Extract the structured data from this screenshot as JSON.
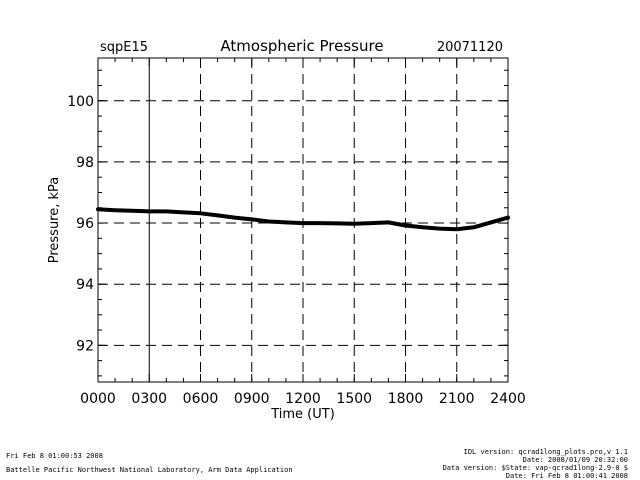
{
  "chart_data": {
    "type": "line",
    "site": "sqpE15",
    "title": "Atmospheric Pressure",
    "date": "20071120",
    "xlabel": "Time (UT)",
    "ylabel": "Pressure, kPa",
    "xlim": [
      0,
      24
    ],
    "ylim": [
      90.8,
      101.4
    ],
    "x_ticks": [
      0,
      3,
      6,
      9,
      12,
      15,
      18,
      21,
      24
    ],
    "x_tick_labels": [
      "0000",
      "0300",
      "0600",
      "0900",
      "1200",
      "1500",
      "1800",
      "2100",
      "2400"
    ],
    "y_ticks": [
      92,
      94,
      96,
      98,
      100
    ],
    "y_tick_labels": [
      "92",
      "94",
      "96",
      "98",
      "100"
    ],
    "grid": true,
    "series": [
      {
        "x": [
          0,
          1,
          2,
          3,
          4,
          5,
          6,
          7,
          8,
          9,
          10,
          11,
          12,
          13,
          14,
          15,
          16,
          17,
          18,
          19,
          20,
          21,
          22,
          23,
          24
        ],
        "y": [
          96.45,
          96.42,
          96.4,
          96.38,
          96.38,
          96.35,
          96.32,
          96.25,
          96.18,
          96.12,
          96.05,
          96.02,
          96.0,
          96.0,
          95.99,
          95.98,
          96.0,
          96.02,
          95.92,
          95.86,
          95.82,
          95.8,
          95.86,
          96.02,
          96.18
        ],
        "color": "#000000"
      }
    ]
  },
  "footer": {
    "left_line1": "Fri Feb  8 01:00:53 2008",
    "left_line2": "Battelle Pacific Northwest National Laboratory, Arm Data Application",
    "right_line1": "IDL version: qcrad1long_plots.pro,v 1.1",
    "right_line2": "Date: 2008/01/09 20:32:00",
    "right_line3": "Data version: $State: vap-qcrad1long-2.9-0 $",
    "right_line4": "Date: Fri Feb  8 01:00:41 2008"
  }
}
